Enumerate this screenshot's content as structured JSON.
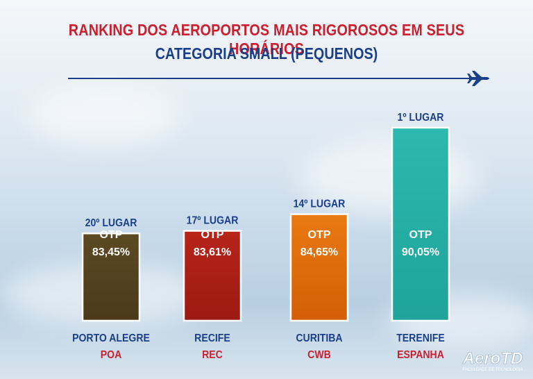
{
  "title": "RANKING DOS AEROPORTOS MAIS RIGOROSOS EM SEUS HORÁRIOS",
  "subtitle": "CATEGORIA SMALL (PEQUENOS)",
  "logo": {
    "name": "AeroTD",
    "tagline": "FACULDADE DE TECNOLOGIA"
  },
  "chart_data": {
    "type": "bar",
    "categories": [
      "PORTO ALEGRE",
      "RECIFE",
      "CURITIBA",
      "TERENIFE"
    ],
    "sub_labels": [
      "POA",
      "REC",
      "CWB",
      "ESPANHA"
    ],
    "rank_labels": [
      "20º LUGAR",
      "17º LUGAR",
      "14º LUGAR",
      "1º LUGAR"
    ],
    "bar_label_prefix": "OTP",
    "value_labels": [
      "83,45%",
      "83,61%",
      "84,65%",
      "90,05%"
    ],
    "values": [
      83.45,
      83.61,
      84.65,
      90.05
    ],
    "colors": [
      "#4a3a1a",
      "#9c1a12",
      "#d35e06",
      "#1fa39a"
    ],
    "colors_light": [
      "#5c4a24",
      "#b7241a",
      "#ea7a12",
      "#2cb9ae"
    ],
    "ylim": [
      78,
      91
    ],
    "grid": false,
    "legend": "none"
  }
}
